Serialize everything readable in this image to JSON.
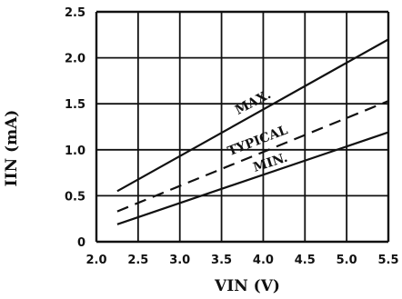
{
  "chart_data": {
    "type": "line",
    "title": "",
    "xlabel": "VIN (V)",
    "ylabel": "IIN (mA)",
    "xlim": [
      2.0,
      5.5
    ],
    "ylim": [
      0,
      2.5
    ],
    "x_ticks": [
      "2.0",
      "2.5",
      "3.0",
      "3.5",
      "4.0",
      "4.5",
      "5.0",
      "5.5"
    ],
    "y_ticks": [
      "0",
      "0.5",
      "1.0",
      "1.5",
      "2.0",
      "2.5"
    ],
    "grid": true,
    "legend": "none",
    "series": [
      {
        "name": "MAX.",
        "style": "solid",
        "x": [
          2.25,
          5.5
        ],
        "y": [
          0.55,
          2.2
        ]
      },
      {
        "name": "TYPICAL",
        "style": "dashed",
        "x": [
          2.25,
          5.5
        ],
        "y": [
          0.33,
          1.53
        ]
      },
      {
        "name": "MIN.",
        "style": "solid",
        "x": [
          2.25,
          5.5
        ],
        "y": [
          0.19,
          1.19
        ]
      }
    ],
    "colors": {
      "ink": "#111111",
      "background": "#ffffff"
    }
  }
}
